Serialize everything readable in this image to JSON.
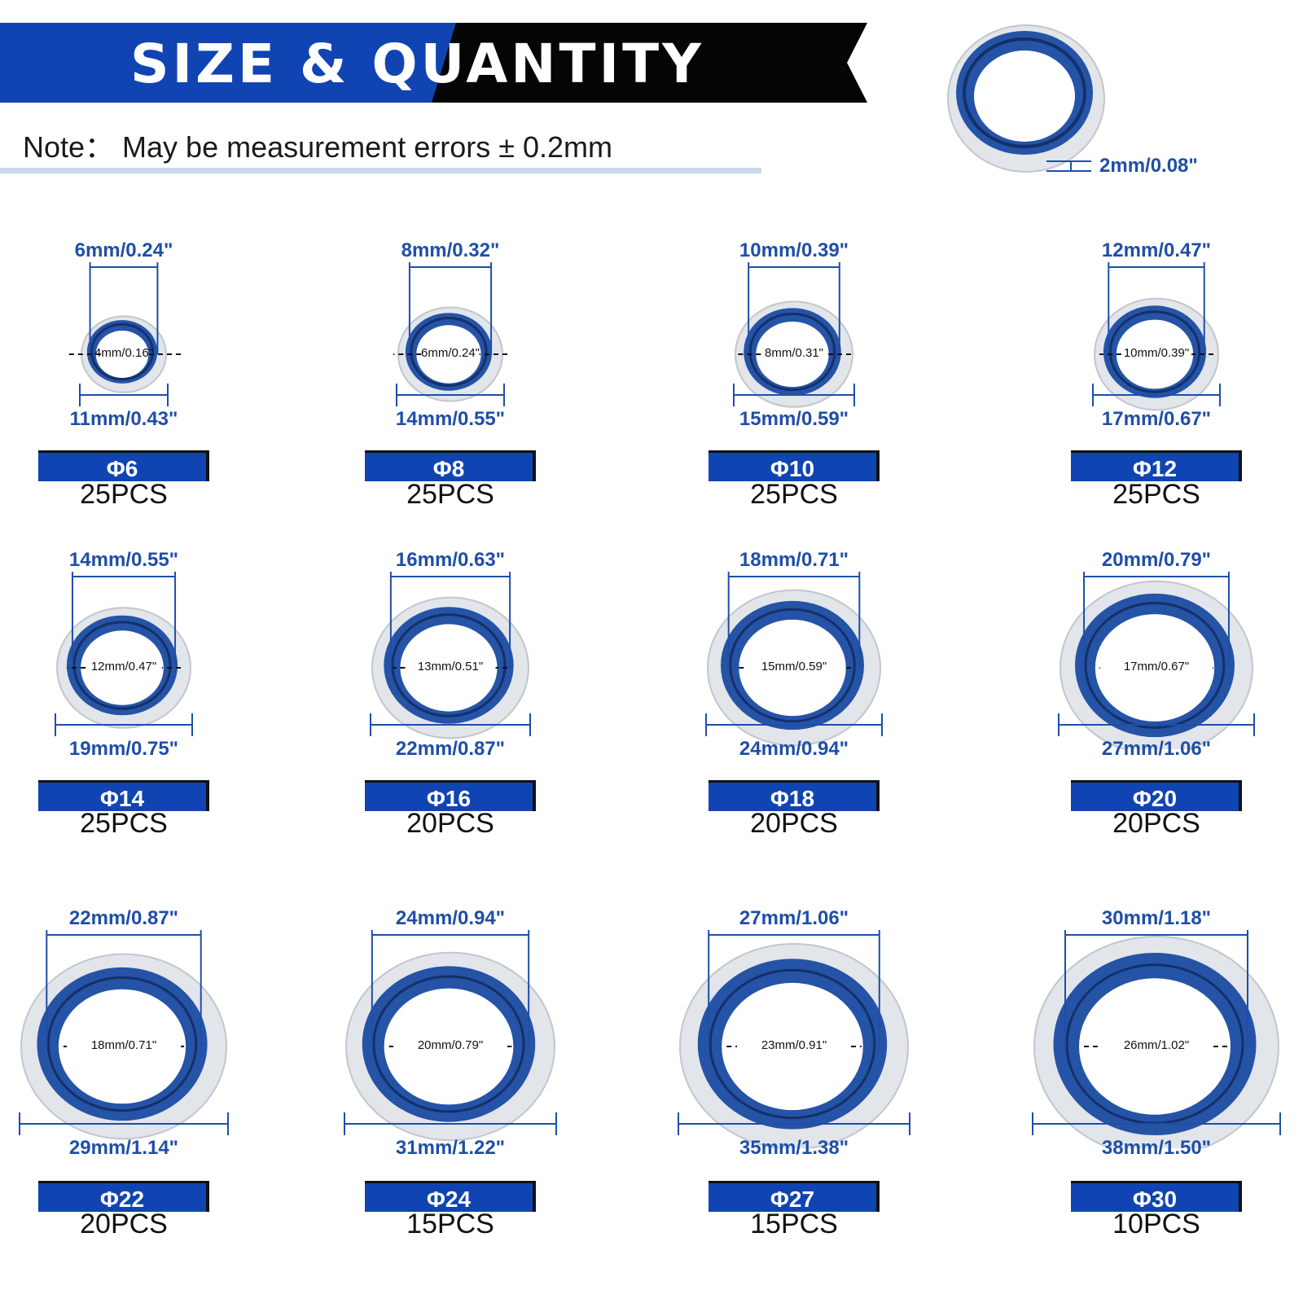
{
  "header": {
    "title": "SIZE & QUANTITY",
    "note": "Note：  May be measurement errors ± 0.2mm",
    "thickness": "2mm/0.08\""
  },
  "colors": {
    "blue": "#1144b3",
    "ring_blue": "#2553a6",
    "text_blue": "#1f4ea8"
  },
  "items": [
    {
      "size": "Φ6",
      "qty": "25PCS",
      "id_top": "6mm/0.24\"",
      "inner": "4mm/0.16\"",
      "od": "11mm/0.43\""
    },
    {
      "size": "Φ8",
      "qty": "25PCS",
      "id_top": "8mm/0.32\"",
      "inner": "6mm/0.24\"",
      "od": "14mm/0.55\""
    },
    {
      "size": "Φ10",
      "qty": "25PCS",
      "id_top": "10mm/0.39\"",
      "inner": "8mm/0.31\"",
      "od": "15mm/0.59\""
    },
    {
      "size": "Φ12",
      "qty": "25PCS",
      "id_top": "12mm/0.47\"",
      "inner": "10mm/0.39\"",
      "od": "17mm/0.67\""
    },
    {
      "size": "Φ14",
      "qty": "25PCS",
      "id_top": "14mm/0.55\"",
      "inner": "12mm/0.47\"",
      "od": "19mm/0.75\""
    },
    {
      "size": "Φ16",
      "qty": "20PCS",
      "id_top": "16mm/0.63\"",
      "inner": "13mm/0.51\"",
      "od": "22mm/0.87\""
    },
    {
      "size": "Φ18",
      "qty": "20PCS",
      "id_top": "18mm/0.71\"",
      "inner": "15mm/0.59\"",
      "od": "24mm/0.94\""
    },
    {
      "size": "Φ20",
      "qty": "20PCS",
      "id_top": "20mm/0.79\"",
      "inner": "17mm/0.67\"",
      "od": "27mm/1.06\""
    },
    {
      "size": "Φ22",
      "qty": "20PCS",
      "id_top": "22mm/0.87\"",
      "inner": "18mm/0.71\"",
      "od": "29mm/1.14\""
    },
    {
      "size": "Φ24",
      "qty": "15PCS",
      "id_top": "24mm/0.94\"",
      "inner": "20mm/0.79\"",
      "od": "31mm/1.22\""
    },
    {
      "size": "Φ27",
      "qty": "15PCS",
      "id_top": "27mm/1.06\"",
      "inner": "23mm/0.91\"",
      "od": "35mm/1.38\""
    },
    {
      "size": "Φ30",
      "qty": "10PCS",
      "id_top": "30mm/1.18\"",
      "inner": "26mm/1.02\"",
      "od": "38mm/1.50\""
    }
  ]
}
